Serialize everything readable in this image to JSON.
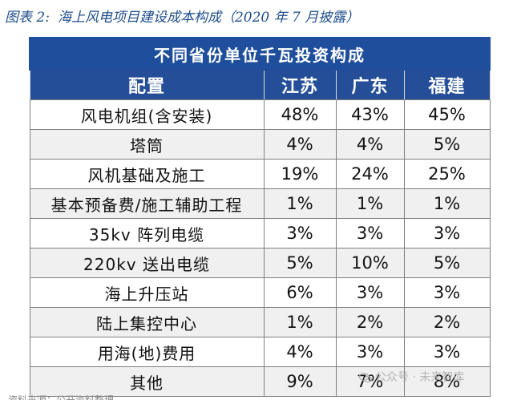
{
  "caption": {
    "number": "图表 2:",
    "text": "海上风电项目建设成本构成（2020 年 7 月披露）"
  },
  "table": {
    "title": "不同省份单位千瓦投资构成",
    "headers": [
      "配置",
      "江苏",
      "广东",
      "福建"
    ],
    "rows": [
      {
        "name": "风电机组(含安装)",
        "values": [
          "48%",
          "43%",
          "45%"
        ]
      },
      {
        "name": "塔筒",
        "values": [
          "4%",
          "4%",
          "5%"
        ]
      },
      {
        "name": "风机基础及施工",
        "values": [
          "19%",
          "24%",
          "25%"
        ]
      },
      {
        "name": "基本预备费/施工辅助工程",
        "values": [
          "1%",
          "1%",
          "1%"
        ]
      },
      {
        "name": "35kv 阵列电缆",
        "values": [
          "3%",
          "3%",
          "3%"
        ]
      },
      {
        "name": "220kv 送出电缆",
        "values": [
          "5%",
          "10%",
          "5%"
        ]
      },
      {
        "name": "海上升压站",
        "values": [
          "6%",
          "3%",
          "3%"
        ]
      },
      {
        "name": "陆上集控中心",
        "values": [
          "1%",
          "2%",
          "2%"
        ]
      },
      {
        "name": "用海(地)费用",
        "values": [
          "4%",
          "3%",
          "3%"
        ]
      },
      {
        "name": "其他",
        "values": [
          "9%",
          "7%",
          "8%"
        ]
      }
    ]
  },
  "watermark": {
    "text": "公众号 · 未来智库",
    "icon": "wechat-icon"
  },
  "footer_cut": {
    "text": "资料来源：公开资料整理"
  }
}
